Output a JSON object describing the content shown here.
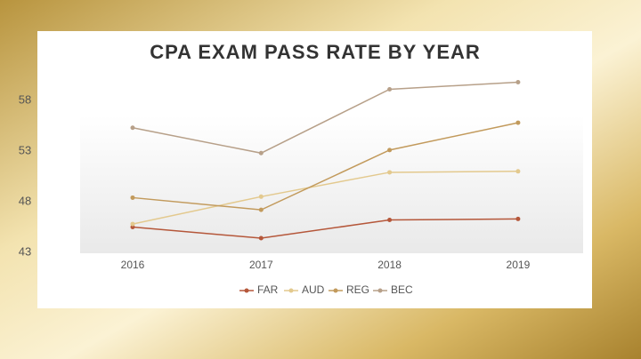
{
  "chart_data": {
    "type": "line",
    "title": "CPA EXAM PASS RATE BY YEAR",
    "categories": [
      "2016",
      "2017",
      "2018",
      "2019"
    ],
    "series": [
      {
        "name": "FAR",
        "color": "#b5573a",
        "values": [
          45.5,
          44.4,
          46.2,
          46.3
        ]
      },
      {
        "name": "AUD",
        "color": "#e3c98e",
        "values": [
          45.8,
          48.5,
          50.9,
          51.0
        ]
      },
      {
        "name": "REG",
        "color": "#c29a5c",
        "values": [
          48.4,
          47.2,
          53.1,
          55.8
        ]
      },
      {
        "name": "BEC",
        "color": "#b7a089",
        "values": [
          55.3,
          52.8,
          59.1,
          59.8
        ]
      }
    ],
    "ylim": [
      43,
      60
    ],
    "yticks": [
      43,
      48,
      53,
      58
    ],
    "legend": "bottom"
  }
}
